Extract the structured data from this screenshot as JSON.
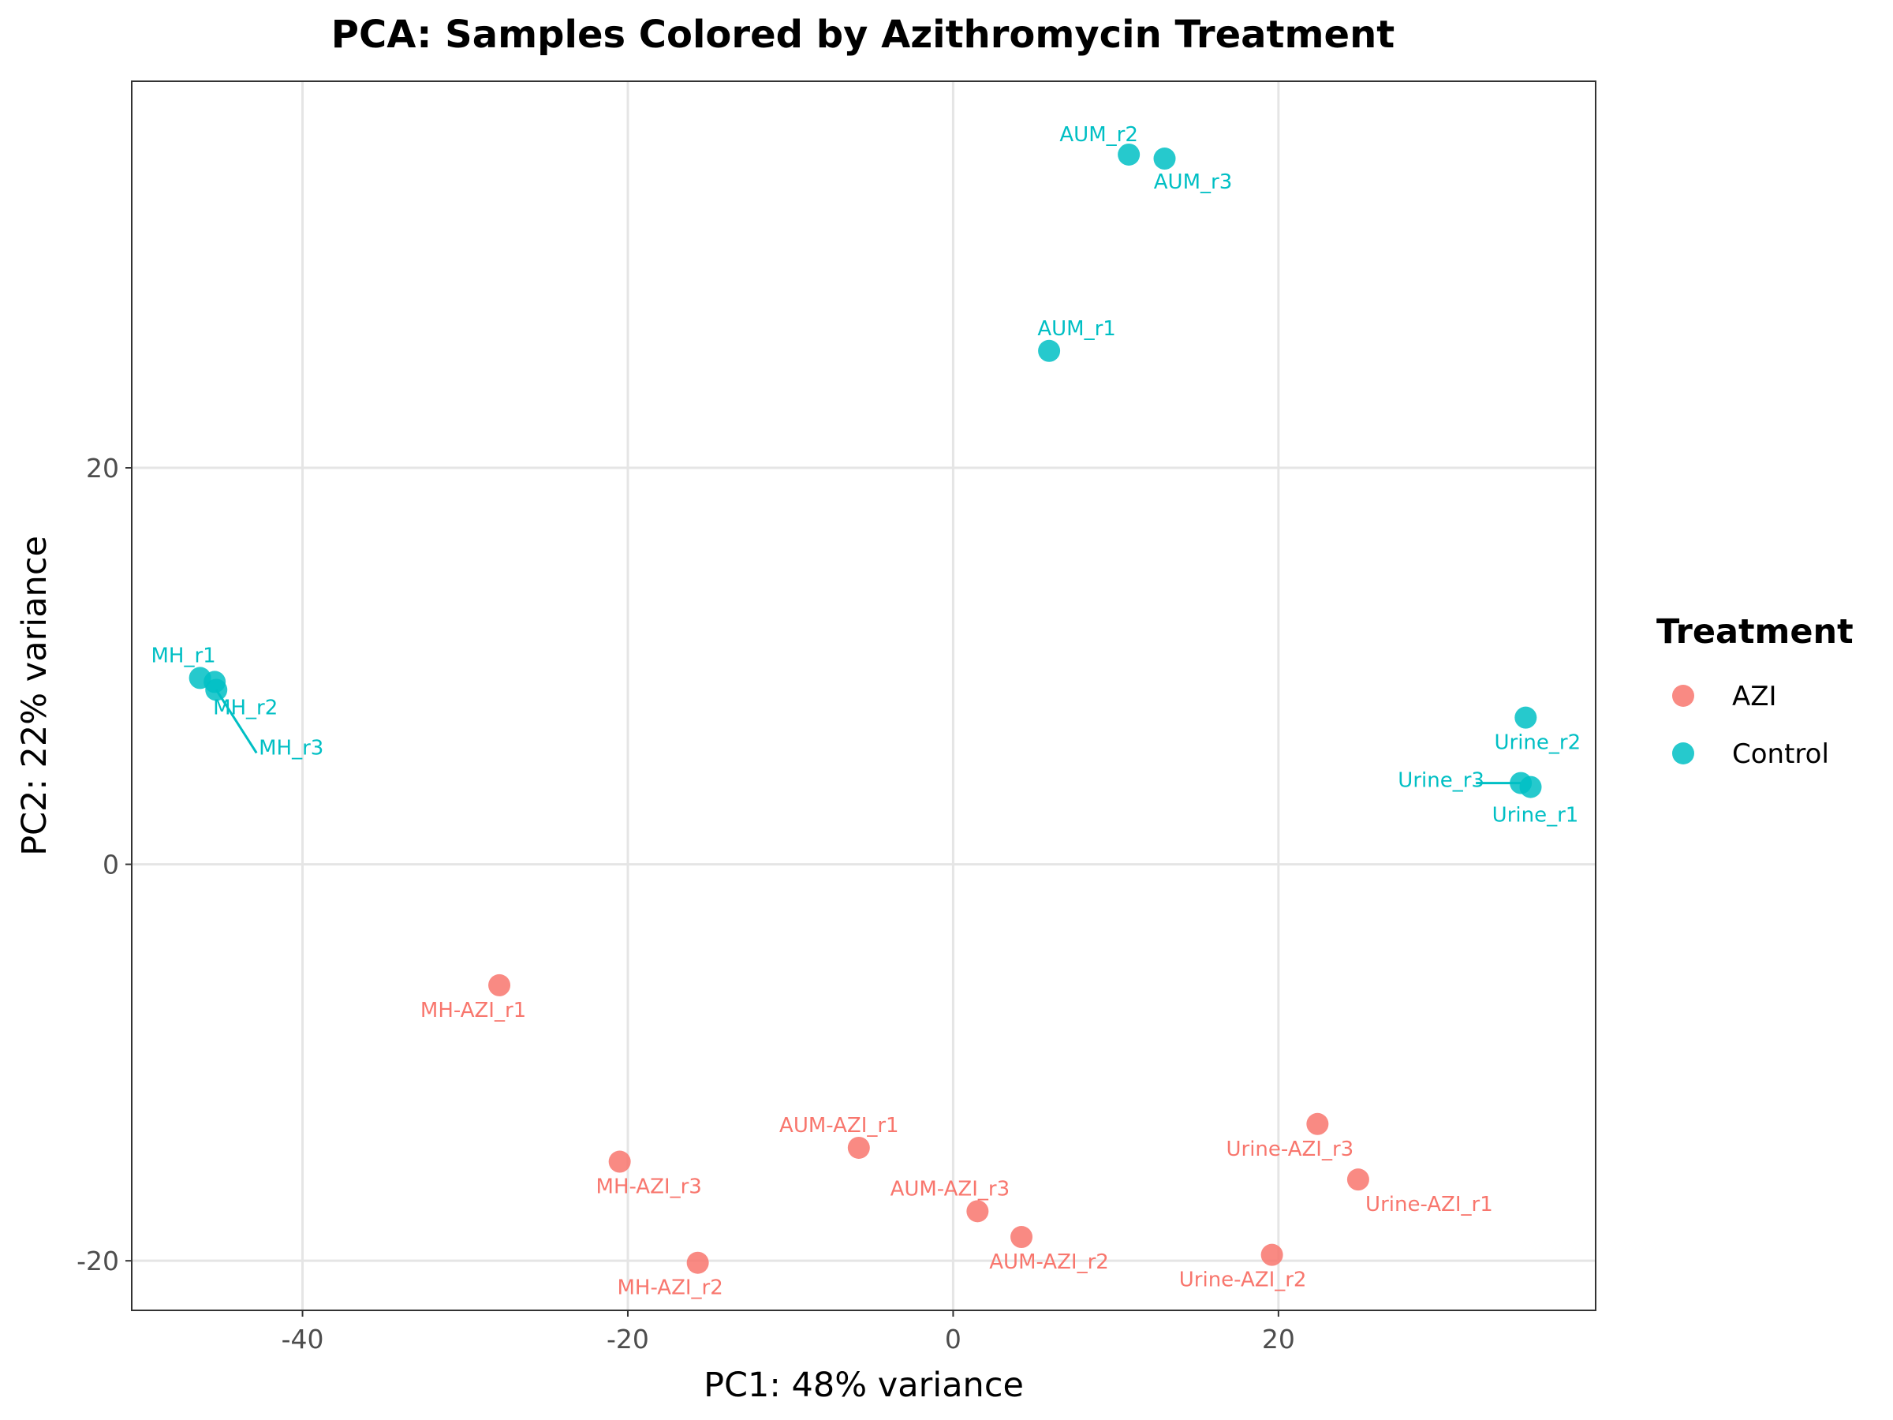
{
  "chart_data": {
    "type": "scatter",
    "title": "PCA: Samples Colored by Azithromycin Treatment",
    "xlabel": "PC1: 48% variance",
    "ylabel": "PC2: 22% variance",
    "xlim": [
      -50.5,
      39.5
    ],
    "ylim": [
      -22.5,
      39.5
    ],
    "xticks": [
      -40,
      -20,
      0,
      20
    ],
    "yticks": [
      -20,
      0,
      20
    ],
    "grid": true,
    "legend": {
      "title": "Treatment",
      "placement": "right",
      "entries": [
        {
          "name": "AZI",
          "color": "#F8766D"
        },
        {
          "name": "Control",
          "color": "#00BFC4"
        }
      ]
    },
    "points": [
      {
        "label": "AUM_r2",
        "x": 10.8,
        "y": 35.8,
        "group": "Control"
      },
      {
        "label": "AUM_r3",
        "x": 13.0,
        "y": 35.6,
        "group": "Control"
      },
      {
        "label": "AUM_r1",
        "x": 5.9,
        "y": 25.9,
        "group": "Control"
      },
      {
        "label": "MH_r1",
        "x": -46.3,
        "y": 9.4,
        "group": "Control"
      },
      {
        "label": "MH_r2",
        "x": -45.4,
        "y": 9.2,
        "group": "Control"
      },
      {
        "label": "MH_r3",
        "x": -45.3,
        "y": 8.8,
        "group": "Control"
      },
      {
        "label": "Urine_r2",
        "x": 35.2,
        "y": 7.4,
        "group": "Control"
      },
      {
        "label": "Urine_r3",
        "x": 34.9,
        "y": 4.1,
        "group": "Control"
      },
      {
        "label": "Urine_r1",
        "x": 35.5,
        "y": 3.9,
        "group": "Control"
      },
      {
        "label": "MH-AZI_r1",
        "x": -27.9,
        "y": -6.1,
        "group": "AZI"
      },
      {
        "label": "Urine-AZI_r3",
        "x": 22.4,
        "y": -13.1,
        "group": "AZI"
      },
      {
        "label": "AUM-AZI_r1",
        "x": -5.8,
        "y": -14.3,
        "group": "AZI"
      },
      {
        "label": "MH-AZI_r3",
        "x": -20.5,
        "y": -15.0,
        "group": "AZI"
      },
      {
        "label": "Urine-AZI_r1",
        "x": 24.9,
        "y": -15.9,
        "group": "AZI"
      },
      {
        "label": "AUM-AZI_r3",
        "x": 1.5,
        "y": -17.5,
        "group": "AZI"
      },
      {
        "label": "AUM-AZI_r2",
        "x": 4.2,
        "y": -18.8,
        "group": "AZI"
      },
      {
        "label": "Urine-AZI_r2",
        "x": 19.6,
        "y": -19.7,
        "group": "AZI"
      },
      {
        "label": "MH-AZI_r2",
        "x": -15.7,
        "y": -20.1,
        "group": "AZI"
      }
    ]
  }
}
